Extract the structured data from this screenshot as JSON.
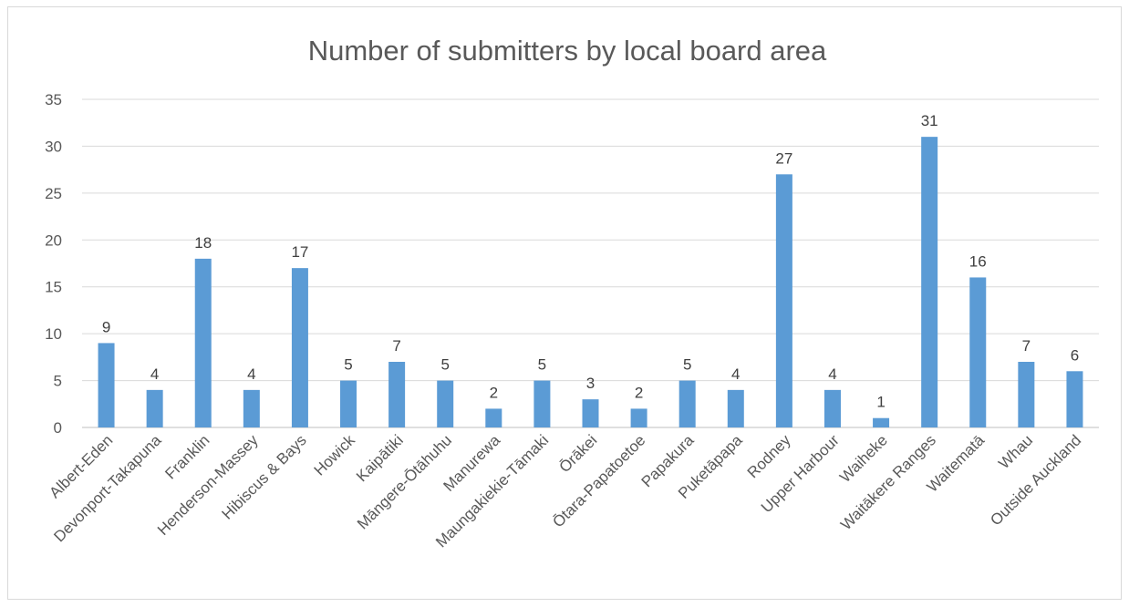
{
  "chart_data": {
    "type": "bar",
    "title": "Number of submitters by local board area",
    "xlabel": "",
    "ylabel": "",
    "ylim": [
      0,
      35
    ],
    "yticks": [
      0,
      5,
      10,
      15,
      20,
      25,
      30,
      35
    ],
    "grid": true,
    "legend": "none",
    "bar_color": "#5b9bd5",
    "categories": [
      "Albert-Eden",
      "Devonport-Takapuna",
      "Franklin",
      "Henderson-Massey",
      "Hibiscus & Bays",
      "Howick",
      "Kaipātiki",
      "Māngere-Ōtāhuhu",
      "Manurewa",
      "Maungakiekie-Tāmaki",
      "Ōrākei",
      "Ōtara-Papatoetoe",
      "Papakura",
      "Puketāpapa",
      "Rodney",
      "Upper Harbour",
      "Waiheke",
      "Waitākere Ranges",
      "Waitematā",
      "Whau",
      "Outside Auckland"
    ],
    "values": [
      9,
      4,
      18,
      4,
      17,
      5,
      7,
      5,
      2,
      5,
      3,
      2,
      5,
      4,
      27,
      4,
      1,
      31,
      16,
      7,
      6
    ]
  }
}
